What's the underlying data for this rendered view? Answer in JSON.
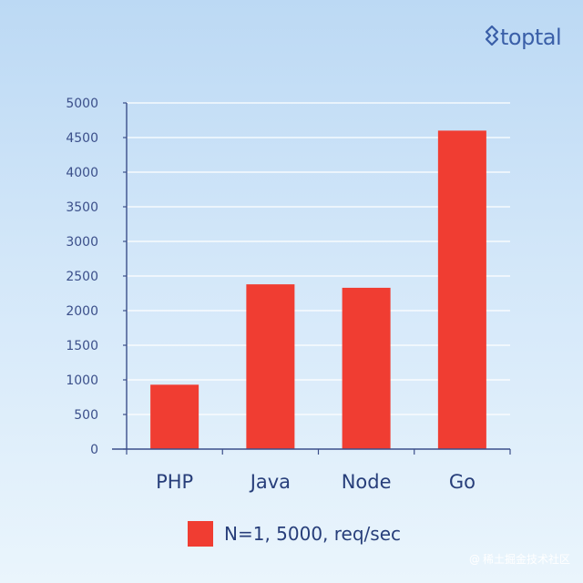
{
  "brand": {
    "logo_text": "toptal",
    "logo_icon": "toptal-mark-icon",
    "color": "#3a5fa8"
  },
  "watermark": {
    "text": "@稀土掘金技术社区",
    "icon": "at-icon"
  },
  "chart_data": {
    "type": "bar",
    "categories": [
      "PHP",
      "Java",
      "Node",
      "Go"
    ],
    "series": [
      {
        "name": "N=1, 5000, req/sec",
        "values": [
          930,
          2380,
          2330,
          4600
        ],
        "color": "#f03d32"
      }
    ],
    "title": "",
    "xlabel": "",
    "ylabel": "",
    "ylim": [
      0,
      5000
    ],
    "yticks": [
      0,
      500,
      1000,
      1500,
      2000,
      2500,
      3000,
      3500,
      4000,
      4500,
      5000
    ],
    "grid": true,
    "legend": "bottom",
    "axis_color": "#3b4f8a",
    "grid_color": "#ffffff"
  }
}
